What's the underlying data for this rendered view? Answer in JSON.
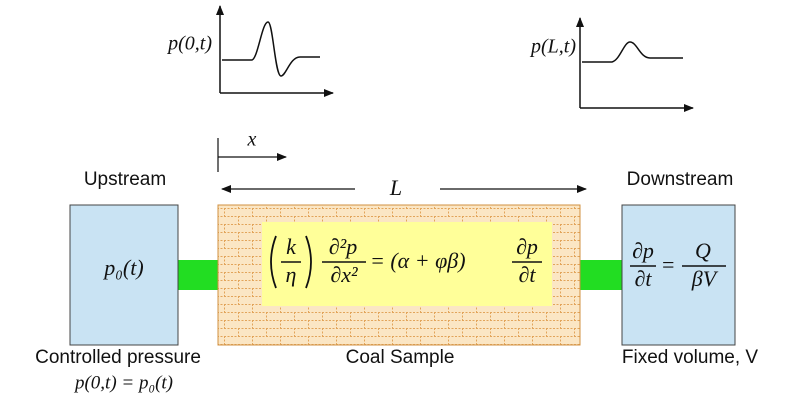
{
  "plots": [
    {
      "label": "p(0,t)"
    },
    {
      "label": "p(L,t)"
    }
  ],
  "axis_label": "x",
  "length_label": "L",
  "upstream": {
    "title": "Upstream",
    "content": "p₀(t)",
    "caption": "Controlled pressure",
    "caption_equation": "p(0,t) = p₀(t)"
  },
  "sample": {
    "caption": "Coal Sample",
    "equation": {
      "k": "k",
      "eta": "η",
      "d2p": "∂²p",
      "dx2": "∂x²",
      "middle": "= (α + φβ)",
      "dp": "∂p",
      "dt": "∂t"
    }
  },
  "downstream": {
    "title": "Downstream",
    "caption": "Fixed volume, V",
    "equation": {
      "dp": "∂p",
      "dt": "∂t",
      "equals": "=",
      "q": "Q",
      "bv": "βV"
    }
  }
}
